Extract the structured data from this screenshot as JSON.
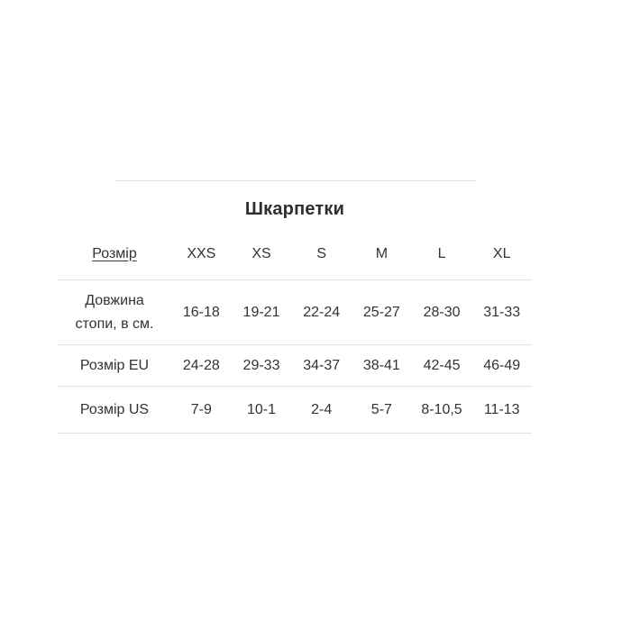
{
  "theme": {
    "background": "#ffffff",
    "text_color": "#333333",
    "divider_color": "#e2e2e2"
  },
  "section": {
    "title": "Шкарпетки"
  },
  "size_table": {
    "header": {
      "label": "Розмір",
      "columns": [
        "XXS",
        "XS",
        "S",
        "M",
        "L",
        "XL"
      ]
    },
    "rows": [
      {
        "label": "Довжина стопи, в см.",
        "values": [
          "16-18",
          "19-21",
          "22-24",
          "25-27",
          "28-30",
          "31-33"
        ]
      },
      {
        "label": "Розмір EU",
        "values": [
          "24-28",
          "29-33",
          "34-37",
          "38-41",
          "42-45",
          "46-49"
        ]
      },
      {
        "label": "Розмір US",
        "values": [
          "7-9",
          "10-1",
          "2-4",
          "5-7",
          "8-10,5",
          "11-13"
        ]
      }
    ]
  }
}
